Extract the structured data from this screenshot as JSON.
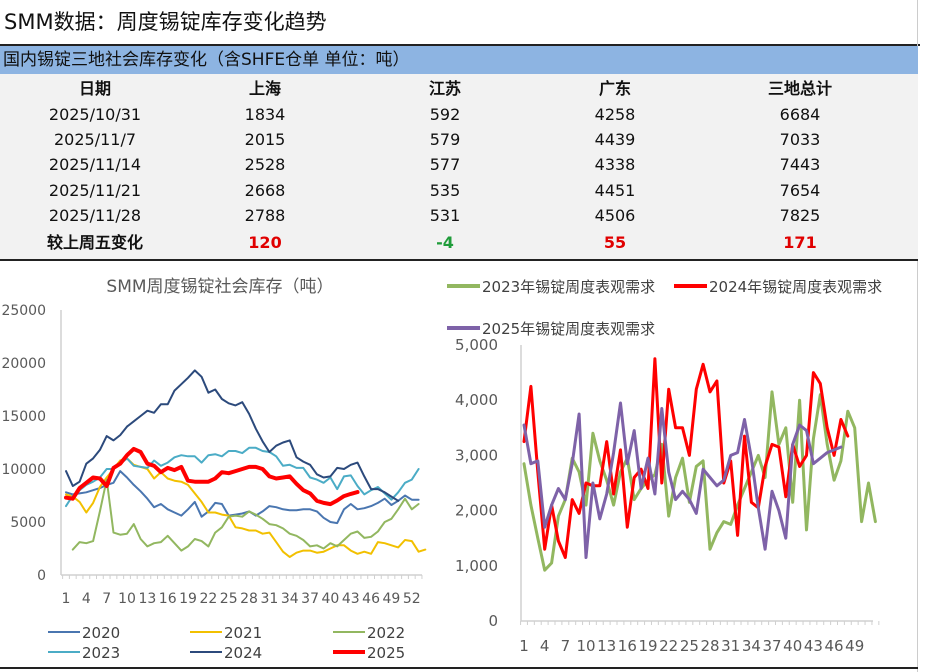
{
  "title": "SMM数据：周度锡锭库存变化趋势",
  "table": {
    "caption": "国内锡锭三地社会库存变化（含SHFE仓单 单位：吨）",
    "headers": [
      "日期",
      "上海",
      "江苏",
      "广东",
      "三地总计"
    ],
    "rows": [
      [
        "2025/10/31",
        "1834",
        "592",
        "4258",
        "6684"
      ],
      [
        "2025/11/7",
        "2015",
        "579",
        "4439",
        "7033"
      ],
      [
        "2025/11/14",
        "2528",
        "577",
        "4338",
        "7443"
      ],
      [
        "2025/11/21",
        "2668",
        "535",
        "4451",
        "7654"
      ],
      [
        "2025/11/28",
        "2788",
        "531",
        "4506",
        "7825"
      ]
    ],
    "change": {
      "label": "较上周五变化",
      "values": [
        "120",
        "-4",
        "55",
        "171"
      ],
      "colors": [
        "#e00000",
        "#1f9c3a",
        "#e00000",
        "#e00000"
      ]
    }
  },
  "chart_data": [
    {
      "type": "line",
      "title": "SMM周度锡锭社会库存（吨）",
      "xlabel": "",
      "ylabel": "",
      "ylim": [
        0,
        25000
      ],
      "yticks": [
        "0",
        "5000",
        "10000",
        "15000",
        "20000",
        "25000"
      ],
      "xticks": [
        "1",
        "4",
        "7",
        "10",
        "13",
        "16",
        "19",
        "22",
        "25",
        "28",
        "31",
        "34",
        "37",
        "40",
        "43",
        "46",
        "49",
        "52"
      ],
      "legend_position": "bottom",
      "series": [
        {
          "name": "2020",
          "color": "#4a76b0",
          "width": 2,
          "start": 1,
          "values": [
            7800,
            7600,
            7700,
            7800,
            8000,
            8200,
            8500,
            8700,
            9800,
            9200,
            8500,
            7900,
            7200,
            6400,
            6700,
            6200,
            5900,
            5600,
            6200,
            6900,
            5500,
            6000,
            6800,
            6700,
            5600,
            5700,
            5800,
            6000,
            5600,
            6000,
            6500,
            6400,
            6200,
            6100,
            6100,
            6200,
            6200,
            6000,
            5400,
            5000,
            4900,
            6200,
            6700,
            6200,
            6300,
            6500,
            6800,
            7200,
            6600,
            7000,
            7500,
            7100,
            7100
          ]
        },
        {
          "name": "2021",
          "color": "#f2c000",
          "width": 2,
          "start": 1,
          "values": [
            7600,
            7400,
            6900,
            5900,
            6800,
            8300,
            9200,
            10000,
            10800,
            11000,
            10400,
            10200,
            10000,
            9100,
            9700,
            9100,
            8900,
            8800,
            8500,
            7700,
            6900,
            5900,
            5900,
            5700,
            5600,
            4500,
            4400,
            4200,
            4200,
            3900,
            4000,
            3100,
            2200,
            1700,
            2100,
            2300,
            2300,
            2100,
            2200,
            2500,
            2800,
            2800,
            2300,
            2000,
            2200,
            2000,
            3100,
            3000,
            2800,
            2600,
            3300,
            3200,
            2200,
            2400
          ]
        },
        {
          "name": "2022",
          "color": "#92b760",
          "width": 2,
          "start": 2,
          "values": [
            2400,
            3100,
            3000,
            3200,
            6000,
            9000,
            4000,
            3800,
            3900,
            4800,
            3400,
            2700,
            3000,
            3100,
            3700,
            3000,
            2300,
            2700,
            3400,
            3200,
            2700,
            4000,
            4500,
            5500,
            5600,
            5500,
            6000,
            5700,
            5300,
            4800,
            4700,
            4400,
            3900,
            3700,
            3300,
            2700,
            2800,
            2500,
            3000,
            2700,
            3300,
            3900,
            4100,
            3500,
            3600,
            4100,
            5000,
            5300,
            6200,
            7200,
            6200,
            6700
          ]
        },
        {
          "name": "2023",
          "color": "#4bacc6",
          "width": 2,
          "start": 1,
          "values": [
            6500,
            7500,
            8000,
            8500,
            8800,
            9200,
            10000,
            10000,
            10500,
            11000,
            10300,
            10200,
            10100,
            10800,
            10300,
            10600,
            11100,
            11300,
            11200,
            11200,
            10600,
            11300,
            11400,
            11200,
            11700,
            11700,
            11500,
            12000,
            12000,
            11700,
            11600,
            11200,
            10300,
            10400,
            10100,
            10100,
            9200,
            9000,
            8700,
            9200,
            8100,
            9300,
            9400,
            8400,
            7600,
            8000,
            8300,
            7700,
            7100,
            7800,
            8700,
            9000,
            10000
          ]
        },
        {
          "name": "2024",
          "color": "#2c4a7c",
          "width": 2,
          "start": 1,
          "values": [
            9800,
            8400,
            8800,
            10500,
            11000,
            11800,
            13100,
            12700,
            13200,
            14000,
            14500,
            15000,
            15500,
            15300,
            16100,
            16100,
            17400,
            18000,
            18600,
            19300,
            18700,
            17200,
            17500,
            16600,
            16200,
            16000,
            16300,
            15200,
            13800,
            12600,
            11600,
            12200,
            12500,
            12700,
            11100,
            10700,
            10400,
            9500,
            9200,
            9300,
            10100,
            10000,
            10400,
            10600,
            9300,
            8100,
            8100,
            7800,
            7400,
            7000
          ]
        },
        {
          "name": "2025",
          "color": "#ff0000",
          "width": 4,
          "start": 1,
          "values": [
            7300,
            7200,
            8200,
            8700,
            9200,
            9100,
            8400,
            10100,
            10500,
            11300,
            11900,
            11600,
            10500,
            10300,
            9700,
            10100,
            9900,
            10200,
            8900,
            8800,
            8800,
            8800,
            9100,
            9700,
            9600,
            9800,
            10000,
            10200,
            10200,
            10000,
            9300,
            9100,
            9200,
            9300,
            8600,
            8000,
            7700,
            7000,
            6800,
            6684,
            7033,
            7443,
            7654,
            7825
          ]
        }
      ]
    },
    {
      "type": "line",
      "title": "",
      "xlabel": "",
      "ylabel": "",
      "ylim": [
        0,
        5000
      ],
      "yticks": [
        "0",
        "1,000",
        "2,000",
        "3,000",
        "4,000",
        "5,000"
      ],
      "xticks": [
        "1",
        "4",
        "7",
        "10",
        "13",
        "16",
        "19",
        "22",
        "25",
        "28",
        "31",
        "34",
        "37",
        "40",
        "43",
        "46",
        "49"
      ],
      "legend_position": "top",
      "series": [
        {
          "name": "2023年锡锭周度表观需求",
          "color": "#92b760",
          "width": 3,
          "start": 1,
          "values": [
            2850,
            2100,
            1500,
            920,
            1050,
            1900,
            2200,
            2950,
            2700,
            2100,
            3400,
            2900,
            2550,
            2100,
            2700,
            2950,
            2200,
            2400,
            2550,
            2650,
            3200,
            1900,
            2600,
            2950,
            2150,
            2800,
            2900,
            1300,
            1600,
            1800,
            1750,
            2100,
            2400,
            2700,
            3000,
            2600,
            4150,
            3200,
            3500,
            2150,
            4000,
            1650,
            3300,
            4100,
            3200,
            2550,
            2900,
            3800,
            3500,
            1800,
            2500,
            1800
          ]
        },
        {
          "name": "2024年锡锭周度表观需求",
          "color": "#ff0000",
          "width": 3,
          "start": 1,
          "values": [
            3250,
            4250,
            2700,
            1300,
            2100,
            1450,
            1150,
            2200,
            1950,
            2500,
            2450,
            2450,
            3250,
            2300,
            3100,
            1700,
            2600,
            2750,
            2400,
            4750,
            2500,
            4200,
            3500,
            3500,
            3000,
            4200,
            4650,
            4150,
            4350,
            2500,
            2900,
            1550,
            3350,
            2150,
            2050,
            2800,
            3200,
            3150,
            2250,
            3200,
            2800,
            3000,
            4500,
            4300,
            3500,
            3000,
            3650,
            3350
          ]
        },
        {
          "name": "2025年锡锭周度表观需求",
          "color": "#7e62a8",
          "width": 3,
          "start": 1,
          "values": [
            3550,
            2850,
            2900,
            1700,
            2100,
            2400,
            2200,
            2850,
            3750,
            1150,
            2500,
            1850,
            2300,
            3050,
            3950,
            2850,
            3450,
            2400,
            2950,
            2300,
            3850,
            2700,
            2200,
            2350,
            2200,
            1950,
            2750,
            2600,
            2450,
            2550,
            3000,
            3050,
            3650,
            2950,
            2050,
            1300,
            2350,
            2000,
            1500,
            3200,
            3550,
            3450,
            2850,
            2950,
            3050,
            3100,
            3150
          ]
        }
      ]
    }
  ]
}
